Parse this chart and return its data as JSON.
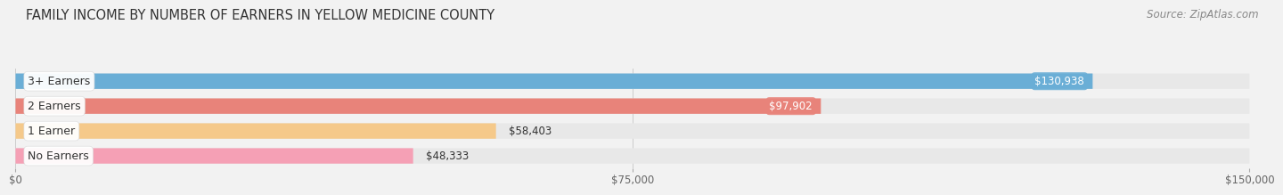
{
  "title": "FAMILY INCOME BY NUMBER OF EARNERS IN YELLOW MEDICINE COUNTY",
  "source": "Source: ZipAtlas.com",
  "categories": [
    "No Earners",
    "1 Earner",
    "2 Earners",
    "3+ Earners"
  ],
  "values": [
    48333,
    58403,
    97902,
    130938
  ],
  "bar_colors": [
    "#f5a0b5",
    "#f5c98a",
    "#e8837a",
    "#6aaed6"
  ],
  "value_label_colors": [
    "#555555",
    "#555555",
    "#ffffff",
    "#ffffff"
  ],
  "value_label_bg_colors": [
    "none",
    "none",
    "#e8837a",
    "#6aaed6"
  ],
  "xlim": [
    0,
    150000
  ],
  "xticks": [
    0,
    75000,
    150000
  ],
  "xtick_labels": [
    "$0",
    "$75,000",
    "$150,000"
  ],
  "background_color": "#f2f2f2",
  "bar_bg_color": "#e8e8e8",
  "title_fontsize": 10.5,
  "source_fontsize": 8.5,
  "value_fontsize": 8.5,
  "cat_fontsize": 9
}
